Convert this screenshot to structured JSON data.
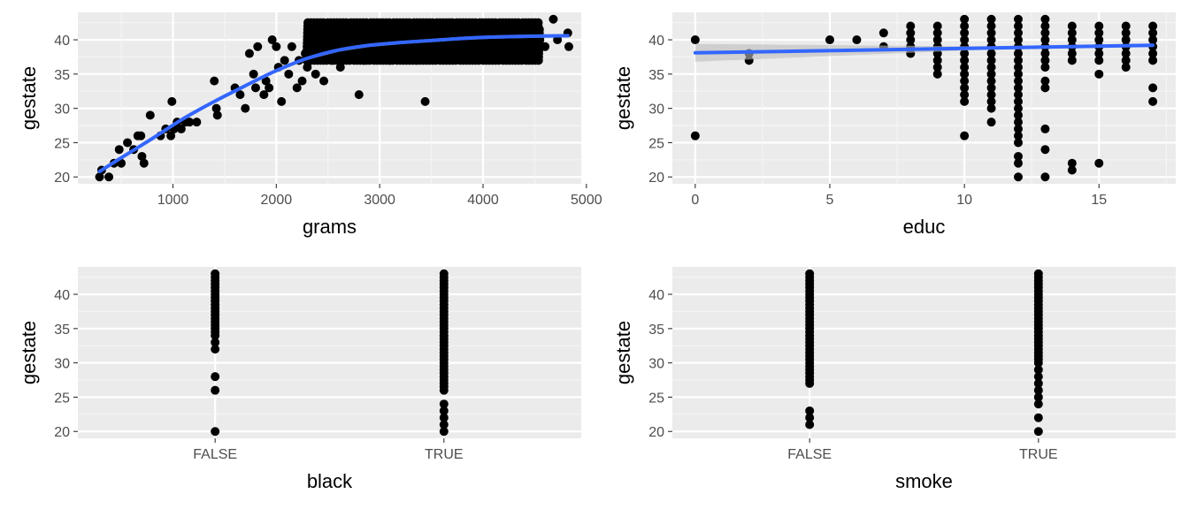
{
  "colors": {
    "panel_background": "#ebebeb",
    "grid_major": "#ffffff",
    "grid_minor": "#f5f5f5",
    "point": "#000000",
    "smooth_line": "#3366ff",
    "confidence_band": "#bdbdbd",
    "tick_label": "#4d4d4d"
  },
  "chart_data": [
    {
      "type": "scatter",
      "xlabel": "grams",
      "ylabel": "gestate",
      "xlim": [
        80,
        4950
      ],
      "ylim": [
        19,
        44
      ],
      "x_ticks": [
        1000,
        2000,
        3000,
        4000,
        5000
      ],
      "x_tick_labels": [
        "1000",
        "2000",
        "3000",
        "4000",
        "5000"
      ],
      "y_ticks": [
        20,
        25,
        30,
        35,
        40
      ],
      "y_tick_labels": [
        "20",
        "25",
        "30",
        "35",
        "40"
      ],
      "grid": true,
      "points": [
        [
          290,
          20
        ],
        [
          310,
          21
        ],
        [
          380,
          20
        ],
        [
          430,
          22
        ],
        [
          480,
          24
        ],
        [
          500,
          22
        ],
        [
          560,
          25
        ],
        [
          620,
          24
        ],
        [
          660,
          26
        ],
        [
          690,
          26
        ],
        [
          700,
          23
        ],
        [
          720,
          22
        ],
        [
          780,
          29
        ],
        [
          880,
          26
        ],
        [
          930,
          27
        ],
        [
          980,
          26
        ],
        [
          990,
          31
        ],
        [
          1010,
          27
        ],
        [
          1040,
          28
        ],
        [
          1080,
          27
        ],
        [
          1120,
          28
        ],
        [
          1160,
          28
        ],
        [
          1230,
          28
        ],
        [
          1400,
          34
        ],
        [
          1420,
          30
        ],
        [
          1430,
          29
        ],
        [
          1600,
          33
        ],
        [
          1650,
          32
        ],
        [
          1700,
          30
        ],
        [
          1740,
          38
        ],
        [
          1780,
          35
        ],
        [
          1800,
          33
        ],
        [
          1820,
          39
        ],
        [
          1880,
          32
        ],
        [
          1900,
          34
        ],
        [
          1930,
          33
        ],
        [
          1960,
          40
        ],
        [
          2000,
          39
        ],
        [
          2020,
          36
        ],
        [
          2050,
          31
        ],
        [
          2080,
          37
        ],
        [
          2120,
          35
        ],
        [
          2150,
          39
        ],
        [
          2200,
          33
        ],
        [
          2220,
          37
        ],
        [
          2250,
          34
        ],
        [
          2280,
          38
        ],
        [
          2300,
          36
        ],
        [
          2340,
          40
        ],
        [
          2380,
          35
        ],
        [
          2420,
          38
        ],
        [
          2460,
          34
        ],
        [
          2500,
          39
        ],
        [
          2540,
          37
        ],
        [
          2580,
          41
        ],
        [
          2620,
          36
        ],
        [
          2660,
          39
        ],
        [
          2700,
          38
        ],
        [
          2740,
          40
        ],
        [
          2800,
          32
        ],
        [
          2850,
          37
        ],
        [
          2900,
          39
        ],
        [
          2950,
          41
        ],
        [
          3000,
          38
        ],
        [
          3050,
          40
        ],
        [
          3100,
          37
        ],
        [
          3150,
          42
        ],
        [
          3200,
          39
        ],
        [
          3250,
          38
        ],
        [
          3300,
          40
        ],
        [
          3350,
          37
        ],
        [
          3400,
          41
        ],
        [
          3440,
          31
        ],
        [
          3500,
          39
        ],
        [
          3550,
          40
        ],
        [
          3600,
          38
        ],
        [
          3650,
          42
        ],
        [
          3700,
          39
        ],
        [
          3750,
          41
        ],
        [
          3800,
          38
        ],
        [
          3850,
          40
        ],
        [
          3900,
          39
        ],
        [
          3950,
          41
        ],
        [
          4000,
          40
        ],
        [
          4050,
          38
        ],
        [
          4100,
          41
        ],
        [
          4150,
          39
        ],
        [
          4200,
          42
        ],
        [
          4250,
          40
        ],
        [
          4300,
          38
        ],
        [
          4350,
          41
        ],
        [
          4400,
          39
        ],
        [
          4450,
          40
        ],
        [
          4500,
          42
        ],
        [
          4550,
          40
        ],
        [
          4600,
          39
        ],
        [
          4680,
          43
        ],
        [
          4720,
          40
        ],
        [
          4820,
          41
        ],
        [
          4830,
          39
        ]
      ],
      "dense_region": {
        "x": [
          2300,
          4550
        ],
        "y": [
          37,
          42.5
        ]
      },
      "smooth": {
        "method": "loess",
        "x": [
          290,
          500,
          800,
          1100,
          1400,
          1700,
          2000,
          2300,
          2600,
          2900,
          3200,
          3500,
          3800,
          4100,
          4400,
          4820
        ],
        "y": [
          20.8,
          22.8,
          25.6,
          28.5,
          31.0,
          33.3,
          35.5,
          37.3,
          38.5,
          39.2,
          39.6,
          39.9,
          40.2,
          40.4,
          40.5,
          40.6
        ],
        "se_halfwidth": 0.25
      }
    },
    {
      "type": "scatter",
      "xlabel": "educ",
      "ylabel": "gestate",
      "xlim": [
        -0.85,
        17.85
      ],
      "ylim": [
        19,
        44
      ],
      "x_ticks": [
        0,
        5,
        10,
        15
      ],
      "x_tick_labels": [
        "0",
        "5",
        "10",
        "15"
      ],
      "y_ticks": [
        20,
        25,
        30,
        35,
        40
      ],
      "y_tick_labels": [
        "20",
        "25",
        "30",
        "35",
        "40"
      ],
      "grid": true,
      "columns": [
        {
          "x": 0,
          "ys": [
            40,
            26
          ]
        },
        {
          "x": 2,
          "ys": [
            38,
            37
          ]
        },
        {
          "x": 5,
          "ys": [
            40
          ]
        },
        {
          "x": 6,
          "ys": [
            40
          ]
        },
        {
          "x": 7,
          "ys": [
            41,
            39
          ]
        },
        {
          "x": 8,
          "ys": [
            42,
            41,
            40,
            39,
            38
          ]
        },
        {
          "x": 9,
          "ys": [
            42,
            41,
            40,
            39,
            38,
            37,
            36,
            35
          ]
        },
        {
          "x": 10,
          "ys": [
            43,
            42,
            41,
            40,
            39,
            38,
            37,
            36,
            35,
            34,
            33,
            32,
            31,
            26
          ]
        },
        {
          "x": 11,
          "ys": [
            43,
            42,
            41,
            40,
            39,
            38,
            37,
            36,
            35,
            34,
            33,
            32,
            31,
            30,
            28
          ]
        },
        {
          "x": 12,
          "ys": [
            43,
            42,
            41,
            40,
            39,
            38,
            37,
            36,
            35,
            34,
            33,
            32,
            31,
            30,
            29,
            28,
            27,
            26,
            25,
            23,
            22,
            20
          ]
        },
        {
          "x": 13,
          "ys": [
            43,
            42,
            41,
            40,
            39,
            38,
            37,
            36,
            34,
            33,
            27,
            24,
            20
          ]
        },
        {
          "x": 14,
          "ys": [
            42,
            41,
            40,
            39,
            38,
            37,
            22,
            21
          ]
        },
        {
          "x": 15,
          "ys": [
            42,
            41,
            40,
            39,
            38,
            37,
            35,
            22
          ]
        },
        {
          "x": 16,
          "ys": [
            42,
            41,
            40,
            39,
            38,
            37,
            36
          ]
        },
        {
          "x": 17,
          "ys": [
            42,
            41,
            40,
            39,
            38,
            37,
            33,
            31
          ]
        }
      ],
      "smooth": {
        "method": "lm",
        "x": [
          0,
          17
        ],
        "y": [
          38.1,
          39.2
        ],
        "se_halfwidth_start": 1.3,
        "se_halfwidth_end": 0.25
      }
    },
    {
      "type": "scatter",
      "xlabel": "black",
      "ylabel": "gestate",
      "categories": [
        "FALSE",
        "TRUE"
      ],
      "ylim": [
        19,
        44
      ],
      "y_ticks": [
        20,
        25,
        30,
        35,
        40
      ],
      "y_tick_labels": [
        "20",
        "25",
        "30",
        "35",
        "40"
      ],
      "grid": true,
      "columns": [
        {
          "category": "FALSE",
          "ys": [
            43,
            42.5,
            42,
            41.5,
            41,
            40.5,
            40,
            39.5,
            39,
            38.5,
            38,
            37.5,
            37,
            36.5,
            36,
            35.5,
            35,
            34.5,
            34,
            33,
            32,
            28,
            26,
            20
          ]
        },
        {
          "category": "TRUE",
          "ys": [
            43,
            42.5,
            42,
            41.5,
            41,
            40.5,
            40,
            39.5,
            39,
            38.5,
            38,
            37.5,
            37,
            36.5,
            36,
            35.5,
            35,
            34.5,
            34,
            33.5,
            33,
            32.5,
            32,
            31.5,
            31,
            30.5,
            30,
            29.5,
            29,
            28.5,
            28,
            27.5,
            27,
            26.5,
            26,
            24,
            23,
            22,
            21,
            20
          ]
        }
      ]
    },
    {
      "type": "scatter",
      "xlabel": "smoke",
      "ylabel": "gestate",
      "categories": [
        "FALSE",
        "TRUE"
      ],
      "ylim": [
        19,
        44
      ],
      "y_ticks": [
        20,
        25,
        30,
        35,
        40
      ],
      "y_tick_labels": [
        "20",
        "25",
        "30",
        "35",
        "40"
      ],
      "grid": true,
      "columns": [
        {
          "category": "FALSE",
          "ys": [
            43,
            42.5,
            42,
            41.5,
            41,
            40.5,
            40,
            39.5,
            39,
            38.5,
            38,
            37.5,
            37,
            36.5,
            36,
            35.5,
            35,
            34.5,
            34,
            33.5,
            33,
            32.5,
            32,
            31.5,
            31,
            30.5,
            30,
            29.5,
            29,
            28.5,
            28,
            27.5,
            27,
            23,
            22,
            21
          ]
        },
        {
          "category": "TRUE",
          "ys": [
            43,
            42.5,
            42,
            41.5,
            41,
            40.5,
            40,
            39.5,
            39,
            38.5,
            38,
            37.5,
            37,
            36.5,
            36,
            35.5,
            35,
            34.5,
            34,
            33.5,
            33,
            32.5,
            32,
            31.5,
            31,
            30.5,
            30,
            29,
            28,
            27,
            26,
            25,
            24,
            22,
            20
          ]
        }
      ]
    }
  ]
}
